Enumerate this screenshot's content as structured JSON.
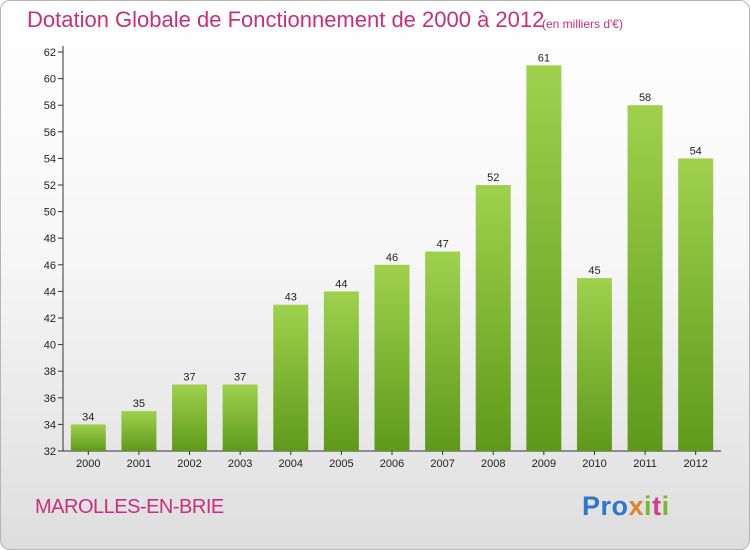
{
  "chart_data": {
    "type": "bar",
    "title": "Dotation Globale de Fonctionnement de 2000 à 2012",
    "subtitle": "(en milliers d'€)",
    "categories": [
      "2000",
      "2001",
      "2002",
      "2003",
      "2004",
      "2005",
      "2006",
      "2007",
      "2008",
      "2009",
      "2010",
      "2011",
      "2012"
    ],
    "values": [
      34,
      35,
      37,
      37,
      43,
      44,
      46,
      47,
      52,
      61,
      45,
      58,
      54
    ],
    "ylim": [
      32,
      62
    ],
    "yticks": [
      32,
      34,
      36,
      38,
      40,
      42,
      44,
      46,
      48,
      50,
      52,
      54,
      56,
      58,
      60,
      62
    ],
    "grid": false,
    "bar_color": "#7cba2c",
    "bar_color_light": "#9fd14d",
    "bar_color_dark": "#5e9a1a"
  },
  "footer": {
    "commune": "MAROLLES-EN-BRIE",
    "logo_parts": [
      "Pro",
      "x",
      "i",
      "t",
      "i"
    ]
  },
  "colors": {
    "title": "#c8307a",
    "axis": "#333333"
  }
}
